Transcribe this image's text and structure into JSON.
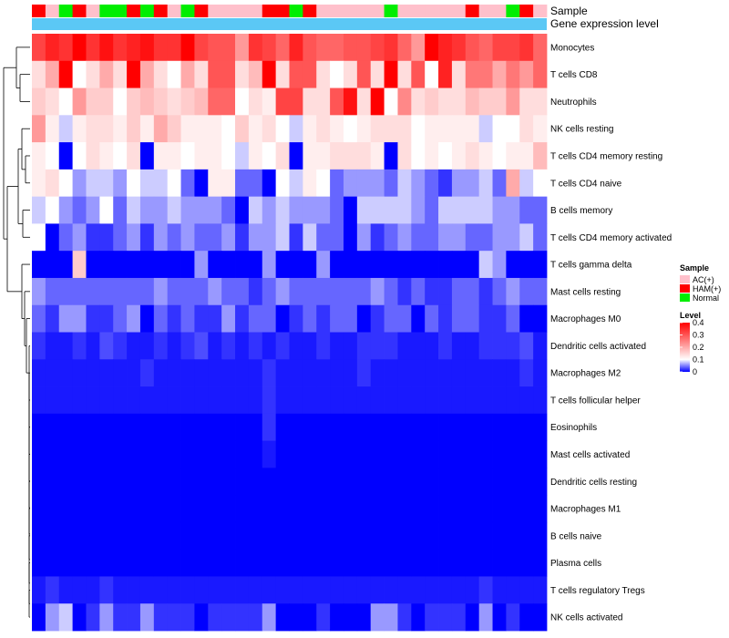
{
  "chart_data": {
    "type": "heatmap",
    "title": "",
    "annotation_rows": [
      "Sample",
      "Gene expression level"
    ],
    "rows": [
      "Monocytes",
      "T cells CD8",
      "Neutrophils",
      "NK cells resting",
      "T cells CD4 memory resting",
      "T cells CD4 naive",
      "B cells memory",
      "T cells CD4 memory activated",
      "T cells gamma delta",
      "Mast cells resting",
      "Macrophages M0",
      "Dendritic cells activated",
      "Macrophages M2",
      "T cells follicular helper",
      "Eosinophils",
      "Mast cells activated",
      "Dendritic cells resting",
      "Macrophages M1",
      "B cells naive",
      "Plasma cells",
      "T cells regulatory  Tregs",
      "NK cells activated"
    ],
    "sample_groups": [
      "HAM(+)",
      "AC(+)",
      "Normal",
      "HAM(+)",
      "AC(+)",
      "Normal",
      "Normal",
      "HAM(+)",
      "Normal",
      "HAM(+)",
      "AC(+)",
      "Normal",
      "HAM(+)",
      "AC(+)",
      "AC(+)",
      "AC(+)",
      "AC(+)",
      "HAM(+)",
      "HAM(+)",
      "Normal",
      "HAM(+)",
      "AC(+)",
      "AC(+)",
      "AC(+)",
      "AC(+)",
      "AC(+)",
      "Normal",
      "AC(+)",
      "AC(+)",
      "AC(+)",
      "AC(+)",
      "AC(+)",
      "HAM(+)",
      "AC(+)",
      "AC(+)",
      "Normal",
      "HAM(+)",
      "AC(+)"
    ],
    "values": [
      [
        0.32,
        0.36,
        0.34,
        0.4,
        0.34,
        0.38,
        0.34,
        0.36,
        0.38,
        0.34,
        0.34,
        0.4,
        0.32,
        0.3,
        0.3,
        0.22,
        0.34,
        0.32,
        0.28,
        0.36,
        0.3,
        0.28,
        0.28,
        0.3,
        0.3,
        0.32,
        0.34,
        0.28,
        0.22,
        0.4,
        0.36,
        0.34,
        0.3,
        0.28,
        0.32,
        0.32,
        0.34,
        0.28
      ],
      [
        0.14,
        0.2,
        0.4,
        0.1,
        0.14,
        0.2,
        0.14,
        0.4,
        0.2,
        0.14,
        0.1,
        0.2,
        0.14,
        0.3,
        0.3,
        0.14,
        0.18,
        0.4,
        0.14,
        0.3,
        0.3,
        0.14,
        0.1,
        0.14,
        0.3,
        0.14,
        0.4,
        0.14,
        0.3,
        0.1,
        0.36,
        0.14,
        0.26,
        0.26,
        0.2,
        0.26,
        0.22,
        0.28
      ],
      [
        0.16,
        0.14,
        0.1,
        0.22,
        0.16,
        0.16,
        0.1,
        0.16,
        0.18,
        0.16,
        0.14,
        0.16,
        0.18,
        0.28,
        0.28,
        0.1,
        0.14,
        0.12,
        0.32,
        0.32,
        0.14,
        0.14,
        0.3,
        0.38,
        0.14,
        0.4,
        0.1,
        0.24,
        0.14,
        0.16,
        0.14,
        0.14,
        0.18,
        0.16,
        0.16,
        0.22,
        0.14,
        0.14
      ],
      [
        0.22,
        0.12,
        0.08,
        0.12,
        0.14,
        0.14,
        0.12,
        0.16,
        0.12,
        0.2,
        0.16,
        0.12,
        0.12,
        0.12,
        0.1,
        0.16,
        0.12,
        0.14,
        0.1,
        0.08,
        0.12,
        0.14,
        0.12,
        0.1,
        0.12,
        0.14,
        0.14,
        0.14,
        0.1,
        0.12,
        0.12,
        0.12,
        0.12,
        0.08,
        0.1,
        0.1,
        0.14,
        0.12
      ],
      [
        0.12,
        0.1,
        0.0,
        0.1,
        0.14,
        0.12,
        0.1,
        0.14,
        0.0,
        0.12,
        0.12,
        0.1,
        0.12,
        0.12,
        0.1,
        0.08,
        0.12,
        0.1,
        0.14,
        0.0,
        0.12,
        0.12,
        0.14,
        0.14,
        0.14,
        0.12,
        0.0,
        0.14,
        0.1,
        0.12,
        0.1,
        0.12,
        0.14,
        0.12,
        0.1,
        0.12,
        0.12,
        0.18
      ],
      [
        0.12,
        0.14,
        0.1,
        0.06,
        0.08,
        0.08,
        0.06,
        0.1,
        0.08,
        0.08,
        0.1,
        0.04,
        0.0,
        0.12,
        0.12,
        0.04,
        0.04,
        0.0,
        0.1,
        0.08,
        0.12,
        0.1,
        0.04,
        0.06,
        0.06,
        0.06,
        0.04,
        0.08,
        0.06,
        0.04,
        0.02,
        0.06,
        0.06,
        0.08,
        0.04,
        0.2,
        0.08,
        0.1
      ],
      [
        0.08,
        0.1,
        0.06,
        0.04,
        0.06,
        0.1,
        0.04,
        0.08,
        0.06,
        0.06,
        0.08,
        0.06,
        0.06,
        0.06,
        0.04,
        0.0,
        0.08,
        0.06,
        0.08,
        0.06,
        0.06,
        0.06,
        0.04,
        0.0,
        0.08,
        0.08,
        0.08,
        0.08,
        0.06,
        0.04,
        0.08,
        0.08,
        0.08,
        0.08,
        0.06,
        0.06,
        0.04,
        0.04
      ],
      [
        0.1,
        0.0,
        0.04,
        0.06,
        0.02,
        0.02,
        0.04,
        0.06,
        0.02,
        0.06,
        0.04,
        0.06,
        0.04,
        0.04,
        0.06,
        0.02,
        0.06,
        0.06,
        0.08,
        0.02,
        0.08,
        0.04,
        0.04,
        0.0,
        0.06,
        0.02,
        0.04,
        0.06,
        0.04,
        0.04,
        0.06,
        0.06,
        0.04,
        0.04,
        0.06,
        0.06,
        0.08,
        0.04
      ],
      [
        0.0,
        0.0,
        0.0,
        0.16,
        0.0,
        0.0,
        0.0,
        0.0,
        0.0,
        0.0,
        0.0,
        0.0,
        0.06,
        0.0,
        0.0,
        0.0,
        0.0,
        0.06,
        0.0,
        0.0,
        0.0,
        0.06,
        0.0,
        0.0,
        0.0,
        0.0,
        0.0,
        0.0,
        0.0,
        0.0,
        0.0,
        0.0,
        0.0,
        0.08,
        0.06,
        0.0,
        0.0,
        0.0
      ],
      [
        0.06,
        0.04,
        0.04,
        0.04,
        0.04,
        0.04,
        0.04,
        0.04,
        0.04,
        0.06,
        0.04,
        0.04,
        0.04,
        0.06,
        0.04,
        0.04,
        0.02,
        0.04,
        0.06,
        0.04,
        0.04,
        0.04,
        0.04,
        0.04,
        0.04,
        0.06,
        0.04,
        0.02,
        0.04,
        0.02,
        0.02,
        0.04,
        0.04,
        0.02,
        0.04,
        0.06,
        0.04,
        0.04
      ],
      [
        0.04,
        0.02,
        0.06,
        0.06,
        0.02,
        0.02,
        0.04,
        0.06,
        0.0,
        0.04,
        0.02,
        0.04,
        0.02,
        0.02,
        0.06,
        0.02,
        0.04,
        0.04,
        0.0,
        0.02,
        0.04,
        0.02,
        0.04,
        0.04,
        0.0,
        0.02,
        0.04,
        0.04,
        0.0,
        0.04,
        0.02,
        0.04,
        0.04,
        0.02,
        0.02,
        0.04,
        0.0,
        0.0
      ],
      [
        0.02,
        0.01,
        0.01,
        0.02,
        0.01,
        0.03,
        0.02,
        0.01,
        0.01,
        0.02,
        0.01,
        0.02,
        0.03,
        0.01,
        0.02,
        0.01,
        0.02,
        0.01,
        0.02,
        0.01,
        0.01,
        0.02,
        0.01,
        0.01,
        0.02,
        0.02,
        0.02,
        0.01,
        0.01,
        0.01,
        0.02,
        0.01,
        0.01,
        0.02,
        0.02,
        0.02,
        0.03,
        0.01
      ],
      [
        0.01,
        0.01,
        0.01,
        0.01,
        0.01,
        0.01,
        0.01,
        0.01,
        0.02,
        0.01,
        0.01,
        0.01,
        0.01,
        0.01,
        0.01,
        0.01,
        0.01,
        0.02,
        0.01,
        0.01,
        0.01,
        0.01,
        0.01,
        0.01,
        0.02,
        0.01,
        0.01,
        0.01,
        0.01,
        0.01,
        0.01,
        0.01,
        0.01,
        0.01,
        0.01,
        0.01,
        0.02,
        0.01
      ],
      [
        0.01,
        0.01,
        0.01,
        0.01,
        0.01,
        0.01,
        0.01,
        0.01,
        0.01,
        0.01,
        0.01,
        0.01,
        0.01,
        0.01,
        0.01,
        0.01,
        0.01,
        0.02,
        0.01,
        0.01,
        0.01,
        0.01,
        0.01,
        0.01,
        0.01,
        0.01,
        0.01,
        0.01,
        0.01,
        0.01,
        0.01,
        0.01,
        0.01,
        0.01,
        0.01,
        0.01,
        0.01,
        0.01
      ],
      [
        0.0,
        0.0,
        0.0,
        0.0,
        0.0,
        0.0,
        0.0,
        0.0,
        0.0,
        0.0,
        0.0,
        0.0,
        0.0,
        0.0,
        0.0,
        0.0,
        0.0,
        0.02,
        0.0,
        0.0,
        0.0,
        0.0,
        0.0,
        0.0,
        0.0,
        0.0,
        0.0,
        0.0,
        0.0,
        0.0,
        0.0,
        0.0,
        0.0,
        0.0,
        0.0,
        0.0,
        0.0,
        0.0
      ],
      [
        0.0,
        0.0,
        0.0,
        0.0,
        0.0,
        0.0,
        0.0,
        0.0,
        0.0,
        0.0,
        0.0,
        0.0,
        0.0,
        0.0,
        0.0,
        0.0,
        0.0,
        0.01,
        0.0,
        0.0,
        0.0,
        0.0,
        0.0,
        0.0,
        0.0,
        0.0,
        0.0,
        0.0,
        0.0,
        0.0,
        0.0,
        0.0,
        0.0,
        0.0,
        0.0,
        0.0,
        0.0,
        0.0
      ],
      [
        0.0,
        0.0,
        0.0,
        0.0,
        0.0,
        0.0,
        0.0,
        0.0,
        0.0,
        0.0,
        0.0,
        0.0,
        0.0,
        0.0,
        0.0,
        0.0,
        0.0,
        0.0,
        0.0,
        0.0,
        0.0,
        0.0,
        0.0,
        0.0,
        0.0,
        0.0,
        0.0,
        0.0,
        0.0,
        0.0,
        0.0,
        0.0,
        0.0,
        0.0,
        0.0,
        0.0,
        0.0,
        0.0
      ],
      [
        0.0,
        0.0,
        0.0,
        0.0,
        0.0,
        0.0,
        0.0,
        0.0,
        0.0,
        0.0,
        0.0,
        0.0,
        0.0,
        0.0,
        0.0,
        0.0,
        0.0,
        0.0,
        0.0,
        0.0,
        0.0,
        0.0,
        0.0,
        0.0,
        0.0,
        0.0,
        0.0,
        0.0,
        0.0,
        0.0,
        0.0,
        0.0,
        0.0,
        0.0,
        0.0,
        0.0,
        0.0,
        0.0
      ],
      [
        0.0,
        0.0,
        0.0,
        0.0,
        0.0,
        0.0,
        0.0,
        0.0,
        0.0,
        0.0,
        0.0,
        0.0,
        0.0,
        0.0,
        0.0,
        0.0,
        0.0,
        0.0,
        0.0,
        0.0,
        0.0,
        0.0,
        0.0,
        0.0,
        0.0,
        0.0,
        0.0,
        0.0,
        0.0,
        0.0,
        0.0,
        0.0,
        0.0,
        0.0,
        0.0,
        0.0,
        0.0,
        0.0
      ],
      [
        0.0,
        0.0,
        0.0,
        0.0,
        0.0,
        0.0,
        0.0,
        0.0,
        0.0,
        0.0,
        0.0,
        0.0,
        0.0,
        0.0,
        0.0,
        0.0,
        0.0,
        0.0,
        0.0,
        0.0,
        0.0,
        0.0,
        0.0,
        0.0,
        0.0,
        0.0,
        0.0,
        0.0,
        0.0,
        0.0,
        0.0,
        0.0,
        0.0,
        0.0,
        0.0,
        0.0,
        0.0,
        0.0
      ],
      [
        0.01,
        0.02,
        0.01,
        0.01,
        0.01,
        0.02,
        0.01,
        0.01,
        0.01,
        0.01,
        0.01,
        0.01,
        0.01,
        0.01,
        0.01,
        0.01,
        0.01,
        0.01,
        0.01,
        0.01,
        0.01,
        0.01,
        0.01,
        0.01,
        0.01,
        0.01,
        0.01,
        0.01,
        0.01,
        0.01,
        0.01,
        0.01,
        0.01,
        0.02,
        0.01,
        0.01,
        0.01,
        0.01
      ],
      [
        0.0,
        0.06,
        0.08,
        0.0,
        0.02,
        0.06,
        0.02,
        0.02,
        0.06,
        0.02,
        0.02,
        0.02,
        0.0,
        0.02,
        0.02,
        0.02,
        0.02,
        0.06,
        0.0,
        0.0,
        0.0,
        0.02,
        0.0,
        0.0,
        0.0,
        0.06,
        0.06,
        0.02,
        0.0,
        0.02,
        0.02,
        0.02,
        0.0,
        0.06,
        0.0,
        0.02,
        0.0,
        0.0
      ]
    ],
    "group_colors": {
      "AC(+)": "#FFC0CB",
      "HAM(+)": "#FF0000",
      "Normal": "#00EE00"
    },
    "expression_bar_color": "#5BC8F5",
    "color_scale": {
      "min": 0,
      "mid": 0.1,
      "max": 0.4,
      "low": "#0000FF",
      "mid_color": "#FFFFFF",
      "high": "#FF0000"
    },
    "legend": {
      "sample_title": "Sample",
      "sample_entries": [
        "AC(+)",
        "HAM(+)",
        "Normal"
      ],
      "level_title": "Level",
      "level_ticks": [
        "0.4",
        "0.3",
        "0.2",
        "0.1",
        "0"
      ],
      "level_tick_values": [
        0.4,
        0.3,
        0.2,
        0.1,
        0
      ],
      "placement": "right"
    }
  }
}
